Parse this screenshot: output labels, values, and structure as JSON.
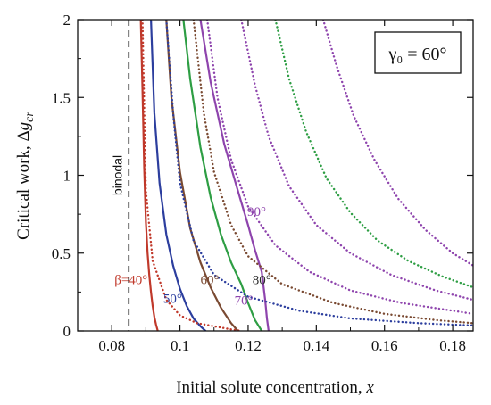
{
  "chart_data": {
    "type": "line",
    "title": "",
    "xlabel": "Initial solute concentration, ",
    "xlabel_var": "x",
    "ylabel": "Critical work, Δ",
    "ylabel_var": "g",
    "ylabel_sub": "cr",
    "xlim": [
      0.07,
      0.186
    ],
    "ylim": [
      0,
      2
    ],
    "x_ticks": [
      0.08,
      0.1,
      0.12,
      0.14,
      0.16,
      0.18
    ],
    "x_tick_labels": [
      "0.08",
      "0.1",
      "0.12",
      "0.14",
      "0.16",
      "0.18"
    ],
    "y_ticks": [
      0,
      0.5,
      1,
      1.5,
      2
    ],
    "y_tick_labels": [
      "0",
      "0.5",
      "1",
      "1.5",
      "2"
    ],
    "legend_box": {
      "text": "γ₀ = 60°",
      "placement": "top-right"
    },
    "binodal": {
      "x": 0.085,
      "label": "binodal"
    },
    "series": [
      {
        "style": "solid",
        "color": "#c0392b",
        "label_color": "#c0392b",
        "x": [
          0.0885,
          0.089,
          0.0895,
          0.09,
          0.0905,
          0.091,
          0.0915,
          0.092,
          0.0925,
          0.093,
          0.0935
        ],
        "y": [
          2.0,
          1.55,
          1.05,
          0.7,
          0.5,
          0.36,
          0.25,
          0.16,
          0.09,
          0.04,
          0.0
        ]
      },
      {
        "style": "solid",
        "color": "#2c3e9e",
        "label_color": "#2c3e9e",
        "x": [
          0.0915,
          0.0925,
          0.094,
          0.096,
          0.098,
          0.1,
          0.102,
          0.104,
          0.106,
          0.1075
        ],
        "y": [
          2.0,
          1.4,
          0.95,
          0.62,
          0.42,
          0.27,
          0.16,
          0.08,
          0.03,
          0.0
        ]
      },
      {
        "style": "solid",
        "color": "#7a4a32",
        "label_color": "#7a4a32",
        "x": [
          0.096,
          0.0975,
          0.1,
          0.103,
          0.106,
          0.109,
          0.112,
          0.115,
          0.117
        ],
        "y": [
          2.0,
          1.5,
          1.02,
          0.66,
          0.44,
          0.28,
          0.15,
          0.05,
          0.0
        ]
      },
      {
        "style": "solid",
        "color": "#2e9e44",
        "label_color": "#2e9e44",
        "x": [
          0.101,
          0.103,
          0.106,
          0.109,
          0.112,
          0.115,
          0.118,
          0.12,
          0.122,
          0.124
        ],
        "y": [
          2.0,
          1.62,
          1.18,
          0.86,
          0.62,
          0.44,
          0.3,
          0.18,
          0.07,
          0.0
        ]
      },
      {
        "style": "solid",
        "color": "#8e44ad",
        "label_color": "#8e44ad",
        "x": [
          0.106,
          0.109,
          0.113,
          0.117,
          0.12,
          0.122,
          0.124,
          0.125,
          0.1255,
          0.126
        ],
        "y": [
          2.0,
          1.6,
          1.2,
          0.9,
          0.68,
          0.52,
          0.38,
          0.2,
          0.08,
          0.0
        ]
      },
      {
        "style": "dotted",
        "color": "#c0392b",
        "x": [
          0.089,
          0.09,
          0.092,
          0.096,
          0.1,
          0.105,
          0.11,
          0.115,
          0.118
        ],
        "y": [
          2.0,
          0.9,
          0.45,
          0.2,
          0.1,
          0.05,
          0.03,
          0.01,
          0.0
        ]
      },
      {
        "style": "dotted",
        "color": "#2c3e9e",
        "x": [
          0.096,
          0.098,
          0.1,
          0.104,
          0.11,
          0.12,
          0.135,
          0.15,
          0.17,
          0.186
        ],
        "y": [
          2.0,
          1.4,
          0.95,
          0.58,
          0.36,
          0.22,
          0.13,
          0.08,
          0.05,
          0.035
        ]
      },
      {
        "style": "dotted",
        "color": "#7a4a32",
        "x": [
          0.104,
          0.107,
          0.11,
          0.115,
          0.12,
          0.13,
          0.145,
          0.16,
          0.175,
          0.186
        ],
        "y": [
          2.0,
          1.4,
          1.02,
          0.68,
          0.48,
          0.3,
          0.18,
          0.11,
          0.07,
          0.05
        ]
      },
      {
        "style": "dotted",
        "color": "#8e44ad",
        "x": [
          0.108,
          0.111,
          0.115,
          0.12,
          0.128,
          0.138,
          0.15,
          0.165,
          0.18,
          0.186
        ],
        "y": [
          2.0,
          1.5,
          1.1,
          0.8,
          0.55,
          0.38,
          0.26,
          0.18,
          0.13,
          0.11
        ]
      },
      {
        "style": "dotted",
        "color": "#8e44ad",
        "x": [
          0.118,
          0.122,
          0.126,
          0.132,
          0.14,
          0.15,
          0.162,
          0.175,
          0.186
        ],
        "y": [
          2.0,
          1.58,
          1.25,
          0.93,
          0.68,
          0.5,
          0.36,
          0.26,
          0.2
        ]
      },
      {
        "style": "dotted",
        "color": "#2e9e44",
        "x": [
          0.128,
          0.132,
          0.137,
          0.143,
          0.15,
          0.158,
          0.167,
          0.177,
          0.186
        ],
        "y": [
          2.0,
          1.62,
          1.28,
          0.98,
          0.76,
          0.58,
          0.45,
          0.35,
          0.28
        ]
      },
      {
        "style": "dotted",
        "color": "#8e44ad",
        "x": [
          0.142,
          0.146,
          0.151,
          0.157,
          0.164,
          0.172,
          0.18,
          0.186
        ],
        "y": [
          2.0,
          1.7,
          1.38,
          1.1,
          0.85,
          0.65,
          0.5,
          0.42
        ]
      }
    ],
    "annotations": [
      {
        "text": "β=40°",
        "x": 0.0905,
        "y": 0.3,
        "color": "#c0392b",
        "anchor": "end"
      },
      {
        "text": "50°",
        "x": 0.1006,
        "y": 0.18,
        "color": "#2c3e9e",
        "anchor": "end"
      },
      {
        "text": "60°",
        "x": 0.1115,
        "y": 0.3,
        "color": "#7a4a32",
        "anchor": "end"
      },
      {
        "text": "70°",
        "x": 0.1215,
        "y": 0.17,
        "color": "#8e44ad",
        "anchor": "end"
      },
      {
        "text": "80°",
        "x": 0.124,
        "y": 0.3,
        "color": "#2e2e2e",
        "anchor": "middle"
      },
      {
        "text": "90°",
        "x": 0.1225,
        "y": 0.74,
        "color": "#8e44ad",
        "anchor": "middle"
      }
    ]
  }
}
